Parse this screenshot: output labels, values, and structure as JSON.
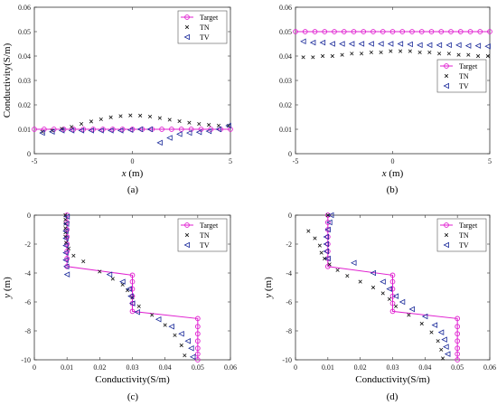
{
  "figure": {
    "panels": [
      "(a)",
      "(b)",
      "(c)",
      "(d)"
    ]
  },
  "colors": {
    "target": "#e020d0",
    "tn": "#111111",
    "tv": "#1a2a9a"
  },
  "chart_data": [
    {
      "type": "scatter",
      "panel_label": "(a)",
      "orientation": "horizontal",
      "xlabel": "x (m)",
      "xlabel_var": "x",
      "xlabel_unit": " (m)",
      "ylabel": "Conductivity(S/m)",
      "xlim": [
        -5,
        5
      ],
      "ylim": [
        0,
        0.06
      ],
      "xticks": [
        -5,
        0,
        5
      ],
      "yticks": [
        0,
        0.01,
        0.02,
        0.03,
        0.04,
        0.05,
        0.06
      ],
      "legend_position": "top-right",
      "grid": false,
      "series": [
        {
          "name": "Target",
          "style": "line-circle",
          "x": [
            -5,
            -4.5,
            -4,
            -3.5,
            -3,
            -2.5,
            -2,
            -1.5,
            -1,
            -0.5,
            0,
            0.5,
            1,
            1.5,
            2,
            2.5,
            3,
            3.5,
            4,
            4.5,
            5
          ],
          "y": [
            0.01,
            0.01,
            0.01,
            0.01,
            0.01,
            0.01,
            0.01,
            0.01,
            0.01,
            0.01,
            0.01,
            0.01,
            0.01,
            0.01,
            0.01,
            0.01,
            0.01,
            0.01,
            0.01,
            0.01,
            0.01
          ]
        },
        {
          "name": "TN",
          "style": "x",
          "x": [
            -4.6,
            -4.1,
            -3.6,
            -3.1,
            -2.6,
            -2.1,
            -1.6,
            -1.1,
            -0.6,
            -0.1,
            0.4,
            0.9,
            1.4,
            1.9,
            2.4,
            2.9,
            3.4,
            3.9,
            4.4,
            4.9
          ],
          "y": [
            0.009,
            0.0095,
            0.0102,
            0.011,
            0.0122,
            0.0132,
            0.0141,
            0.0149,
            0.0154,
            0.0157,
            0.0156,
            0.0152,
            0.0146,
            0.0139,
            0.0133,
            0.0127,
            0.0122,
            0.0118,
            0.0115,
            0.0114
          ]
        },
        {
          "name": "TV",
          "style": "triangle-left",
          "x": [
            -4.6,
            -4.1,
            -3.6,
            -3.1,
            -2.6,
            -2.1,
            -1.6,
            -1.1,
            -0.6,
            -0.1,
            0.4,
            0.9,
            1.4,
            1.9,
            2.4,
            2.9,
            3.4,
            3.9,
            4.4,
            4.9
          ],
          "y": [
            0.0085,
            0.009,
            0.0095,
            0.0095,
            0.0095,
            0.0095,
            0.0095,
            0.0095,
            0.0095,
            0.0097,
            0.01,
            0.01,
            0.0045,
            0.0065,
            0.008,
            0.0085,
            0.0088,
            0.0092,
            0.01,
            0.0115
          ]
        }
      ]
    },
    {
      "type": "scatter",
      "panel_label": "(b)",
      "orientation": "horizontal",
      "xlabel": "x (m)",
      "xlabel_var": "x",
      "xlabel_unit": " (m)",
      "ylabel": "",
      "xlim": [
        -5,
        5
      ],
      "ylim": [
        0,
        0.06
      ],
      "xticks": [
        -5,
        0,
        5
      ],
      "yticks": [
        0,
        0.01,
        0.02,
        0.03,
        0.04,
        0.05,
        0.06
      ],
      "legend_position": "center-right",
      "grid": false,
      "series": [
        {
          "name": "Target",
          "style": "line-circle",
          "x": [
            -5,
            -4.5,
            -4,
            -3.5,
            -3,
            -2.5,
            -2,
            -1.5,
            -1,
            -0.5,
            0,
            0.5,
            1,
            1.5,
            2,
            2.5,
            3,
            3.5,
            4,
            4.5,
            5
          ],
          "y": [
            0.05,
            0.05,
            0.05,
            0.05,
            0.05,
            0.05,
            0.05,
            0.05,
            0.05,
            0.05,
            0.05,
            0.05,
            0.05,
            0.05,
            0.05,
            0.05,
            0.05,
            0.05,
            0.05,
            0.05,
            0.05
          ]
        },
        {
          "name": "TN",
          "style": "x",
          "x": [
            -4.6,
            -4.1,
            -3.6,
            -3.1,
            -2.6,
            -2.1,
            -1.6,
            -1.1,
            -0.6,
            -0.1,
            0.4,
            0.9,
            1.4,
            1.9,
            2.4,
            2.9,
            3.4,
            3.9,
            4.4,
            4.9
          ],
          "y": [
            0.0395,
            0.0395,
            0.04,
            0.04,
            0.0405,
            0.041,
            0.041,
            0.0415,
            0.0415,
            0.042,
            0.042,
            0.042,
            0.0415,
            0.0415,
            0.041,
            0.041,
            0.0405,
            0.0405,
            0.04,
            0.04
          ]
        },
        {
          "name": "TV",
          "style": "triangle-left",
          "x": [
            -4.6,
            -4.1,
            -3.6,
            -3.1,
            -2.6,
            -2.1,
            -1.6,
            -1.1,
            -0.6,
            -0.1,
            0.4,
            0.9,
            1.4,
            1.9,
            2.4,
            2.9,
            3.4,
            3.9,
            4.4,
            4.9
          ],
          "y": [
            0.046,
            0.0455,
            0.0455,
            0.045,
            0.045,
            0.045,
            0.045,
            0.045,
            0.045,
            0.045,
            0.045,
            0.0448,
            0.0445,
            0.0445,
            0.0445,
            0.0445,
            0.0445,
            0.0442,
            0.0442,
            0.044
          ]
        }
      ]
    },
    {
      "type": "scatter",
      "panel_label": "(c)",
      "orientation": "vertical",
      "xlabel": "Conductivity(S/m)",
      "ylabel": "y (m)",
      "ylabel_var": "y",
      "ylabel_unit": " (m)",
      "xlim": [
        0,
        0.06
      ],
      "ylim": [
        -10,
        0
      ],
      "xticks": [
        0,
        0.01,
        0.02,
        0.03,
        0.04,
        0.05,
        0.06
      ],
      "yticks": [
        0,
        -2,
        -4,
        -6,
        -8,
        -10
      ],
      "legend_position": "top-right",
      "grid": false,
      "series": [
        {
          "name": "Target",
          "style": "line-circle",
          "x": [
            0.01,
            0.01,
            0.01,
            0.01,
            0.01,
            0.01,
            0.01,
            0.01,
            0.03,
            0.03,
            0.03,
            0.03,
            0.03,
            0.03,
            0.05,
            0.05,
            0.05,
            0.05,
            0.05,
            0.05,
            0.05
          ],
          "y": [
            0,
            -0.5,
            -1,
            -1.5,
            -2,
            -2.5,
            -3,
            -3.55,
            -4.15,
            -4.6,
            -5.1,
            -5.6,
            -6.1,
            -6.65,
            -7.15,
            -7.7,
            -8.2,
            -8.7,
            -9.2,
            -9.6,
            -10
          ]
        },
        {
          "name": "TN",
          "style": "x",
          "x": [
            0.0095,
            0.0095,
            0.0095,
            0.0095,
            0.0095,
            0.0095,
            0.0097,
            0.0105,
            0.012,
            0.015,
            0.02,
            0.024,
            0.027,
            0.0285,
            0.03,
            0.032,
            0.036,
            0.04,
            0.043,
            0.045,
            0.046
          ],
          "y": [
            0,
            -0.3,
            -0.6,
            -0.9,
            -1.2,
            -1.5,
            -1.9,
            -2.3,
            -2.8,
            -3.2,
            -3.9,
            -4.4,
            -4.8,
            -5.2,
            -5.7,
            -6.3,
            -6.9,
            -7.6,
            -8.3,
            -9.0,
            -9.7
          ]
        },
        {
          "name": "TV",
          "style": "triangle-left",
          "x": [
            0.01,
            0.0098,
            0.0096,
            0.0096,
            0.0096,
            0.0096,
            0.0096,
            0.0098,
            0.01,
            0.023,
            0.027,
            0.029,
            0.0295,
            0.03,
            0.0315,
            0.038,
            0.042,
            0.045,
            0.047,
            0.048,
            0.0485
          ],
          "y": [
            -0.1,
            -0.6,
            -1.1,
            -1.6,
            -2.1,
            -2.6,
            -3.1,
            -3.55,
            -4.1,
            -4.1,
            -4.6,
            -5.1,
            -5.6,
            -6.1,
            -6.7,
            -7.2,
            -7.7,
            -8.2,
            -8.7,
            -9.2,
            -9.8
          ]
        }
      ]
    },
    {
      "type": "scatter",
      "panel_label": "(d)",
      "orientation": "vertical",
      "xlabel": "Conductivity(S/m)",
      "ylabel": "y (m)",
      "ylabel_var": "y",
      "ylabel_unit": " (m)",
      "xlim": [
        0,
        0.06
      ],
      "ylim": [
        -10,
        0
      ],
      "xticks": [
        0,
        0.01,
        0.02,
        0.03,
        0.04,
        0.05,
        0.06
      ],
      "yticks": [
        0,
        -2,
        -4,
        -6,
        -8,
        -10
      ],
      "legend_position": "top-right",
      "grid": false,
      "series": [
        {
          "name": "Target",
          "style": "line-circle",
          "x": [
            0.01,
            0.01,
            0.01,
            0.01,
            0.01,
            0.01,
            0.01,
            0.01,
            0.03,
            0.03,
            0.03,
            0.03,
            0.03,
            0.03,
            0.05,
            0.05,
            0.05,
            0.05,
            0.05,
            0.05,
            0.05
          ],
          "y": [
            0,
            -0.5,
            -1,
            -1.5,
            -2,
            -2.5,
            -3,
            -3.55,
            -4.15,
            -4.6,
            -5.1,
            -5.6,
            -6.1,
            -6.65,
            -7.15,
            -7.7,
            -8.2,
            -8.7,
            -9.2,
            -9.6,
            -10
          ]
        },
        {
          "name": "TN",
          "style": "x",
          "x": [
            0.01,
            0.004,
            0.006,
            0.0075,
            0.008,
            0.009,
            0.0105,
            0.013,
            0.016,
            0.02,
            0.024,
            0.027,
            0.029,
            0.031,
            0.035,
            0.039,
            0.042,
            0.044,
            0.045,
            0.0455
          ],
          "y": [
            0,
            -1.1,
            -1.6,
            -2.1,
            -2.6,
            -3.0,
            -3.4,
            -3.8,
            -4.2,
            -4.6,
            -5.0,
            -5.4,
            -5.8,
            -6.3,
            -6.9,
            -7.5,
            -8.1,
            -8.7,
            -9.3,
            -9.9
          ]
        },
        {
          "name": "TV",
          "style": "triangle-left",
          "x": [
            0.011,
            0.0105,
            0.01,
            0.0095,
            0.0095,
            0.0095,
            0.01,
            0.018,
            0.024,
            0.027,
            0.029,
            0.031,
            0.033,
            0.036,
            0.04,
            0.043,
            0.045,
            0.046,
            0.0465,
            0.047
          ],
          "y": [
            0,
            -0.5,
            -1.0,
            -1.5,
            -2.0,
            -2.5,
            -3.0,
            -3.3,
            -4.0,
            -4.6,
            -5.1,
            -5.6,
            -6.0,
            -6.5,
            -7.0,
            -7.6,
            -8.1,
            -8.6,
            -9.1,
            -9.6
          ]
        }
      ]
    }
  ]
}
